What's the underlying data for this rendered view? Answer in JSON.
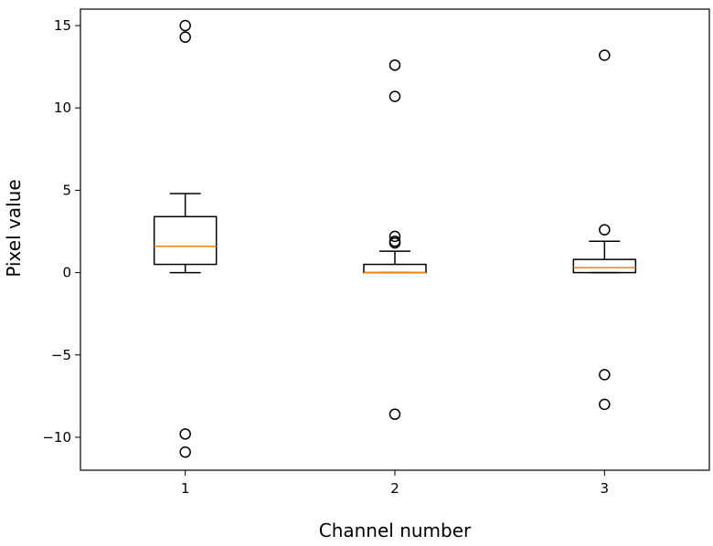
{
  "chart_data": {
    "type": "boxplot",
    "title": "",
    "xlabel": "Channel number",
    "ylabel": "Pixel value",
    "categories": [
      "1",
      "2",
      "3"
    ],
    "ylim": [
      -12.0,
      16.0
    ],
    "yticks": [
      -10,
      -5,
      0,
      5,
      10,
      15
    ],
    "ytick_labels": [
      "−10",
      "−5",
      "0",
      "5",
      "10",
      "15"
    ],
    "grid": false,
    "colors": {
      "median": "#ff7f0e",
      "box": "#000000",
      "outlier": "#000000"
    },
    "series": [
      {
        "whisker_low": 0.0,
        "q1": 0.5,
        "median": 1.6,
        "q3": 3.4,
        "whisker_high": 4.8,
        "outliers": [
          15.0,
          14.3,
          -9.8,
          -10.9
        ]
      },
      {
        "whisker_low": 0.0,
        "q1": 0.0,
        "median": 0.0,
        "q3": 0.5,
        "whisker_high": 1.3,
        "outliers": [
          12.6,
          10.7,
          2.2,
          1.9,
          1.8,
          -8.6
        ]
      },
      {
        "whisker_low": 0.0,
        "q1": 0.0,
        "median": 0.3,
        "q3": 0.8,
        "whisker_high": 1.9,
        "outliers": [
          13.2,
          2.6,
          -6.2,
          -8.0
        ]
      }
    ]
  }
}
